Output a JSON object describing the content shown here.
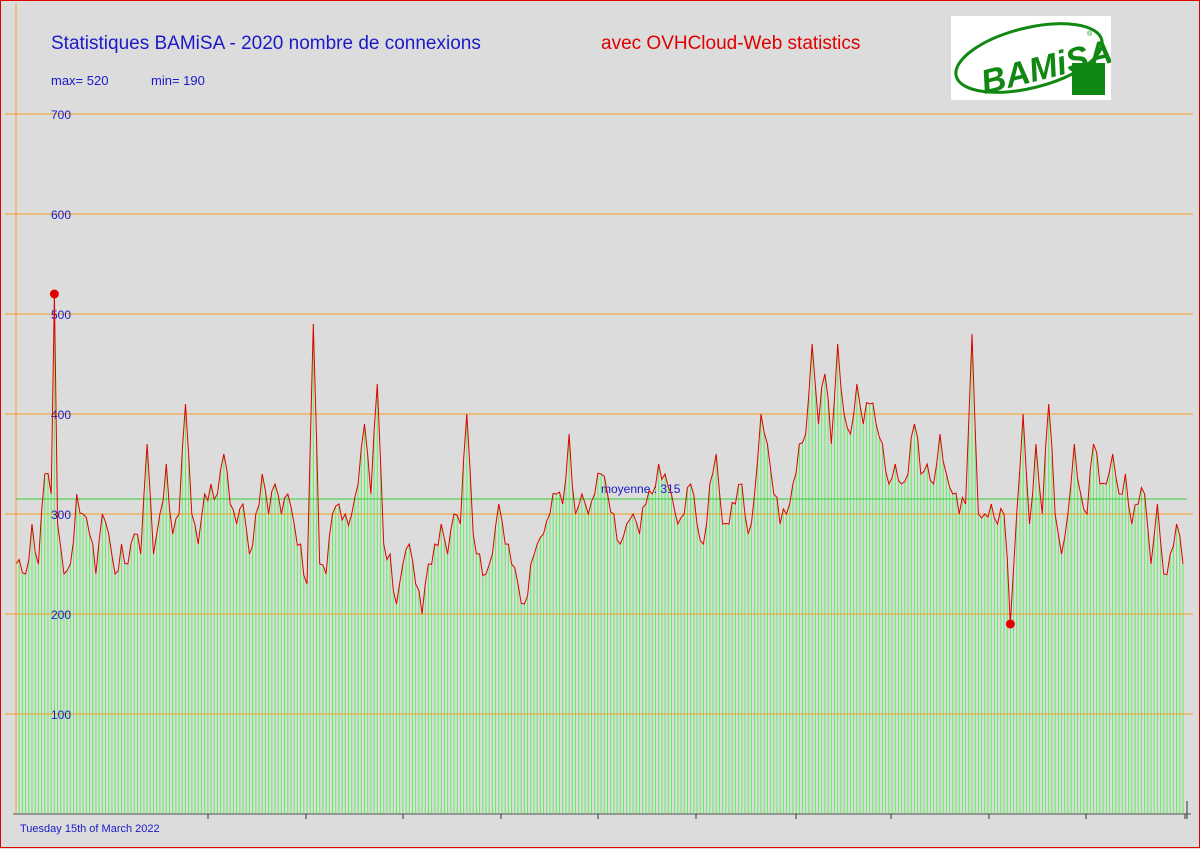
{
  "header": {
    "title": "Statistiques BAMiSA - 2020 nombre de connexions",
    "subtitle": "avec OVHCloud-Web statistics",
    "max_label": "max= 520",
    "min_label": "min= 190",
    "date_label": "Tuesday 15th of March 2022"
  },
  "logo": {
    "text": "BAMiSA",
    "registered": "®",
    "color": "#118811"
  },
  "colors": {
    "background": "#dcdcdc",
    "gridline": "#f0a020",
    "bar": "#5df05d",
    "line": "#e00000",
    "mean_line": "#30d030",
    "text_blue": "#1a1ac8",
    "text_red": "#e00000"
  },
  "chart_data": {
    "type": "bar",
    "x_count": 366,
    "ylim": [
      0,
      700
    ],
    "y_ticks": [
      "100",
      "200",
      "300",
      "400",
      "500",
      "600",
      "700"
    ],
    "grid": true,
    "mean": 315,
    "mean_label": "moyenne : 315",
    "max": 520,
    "min": 190,
    "max_index": 12,
    "min_index": 311,
    "anchors": [
      [
        0,
        250
      ],
      [
        3,
        240
      ],
      [
        5,
        290
      ],
      [
        7,
        250
      ],
      [
        9,
        340
      ],
      [
        11,
        320
      ],
      [
        12,
        520
      ],
      [
        13,
        290
      ],
      [
        15,
        240
      ],
      [
        17,
        250
      ],
      [
        19,
        320
      ],
      [
        21,
        300
      ],
      [
        23,
        280
      ],
      [
        25,
        240
      ],
      [
        27,
        300
      ],
      [
        29,
        280
      ],
      [
        31,
        240
      ],
      [
        33,
        270
      ],
      [
        35,
        250
      ],
      [
        37,
        280
      ],
      [
        39,
        260
      ],
      [
        41,
        370
      ],
      [
        43,
        260
      ],
      [
        45,
        300
      ],
      [
        47,
        350
      ],
      [
        49,
        280
      ],
      [
        51,
        300
      ],
      [
        53,
        410
      ],
      [
        55,
        300
      ],
      [
        57,
        270
      ],
      [
        59,
        320
      ],
      [
        61,
        330
      ],
      [
        63,
        320
      ],
      [
        65,
        360
      ],
      [
        67,
        310
      ],
      [
        69,
        290
      ],
      [
        71,
        310
      ],
      [
        73,
        260
      ],
      [
        75,
        300
      ],
      [
        77,
        340
      ],
      [
        79,
        300
      ],
      [
        81,
        330
      ],
      [
        83,
        300
      ],
      [
        85,
        320
      ],
      [
        87,
        290
      ],
      [
        89,
        270
      ],
      [
        91,
        230
      ],
      [
        93,
        490
      ],
      [
        95,
        250
      ],
      [
        97,
        240
      ],
      [
        99,
        300
      ],
      [
        101,
        310
      ],
      [
        103,
        300
      ],
      [
        105,
        300
      ],
      [
        107,
        330
      ],
      [
        109,
        390
      ],
      [
        111,
        320
      ],
      [
        113,
        430
      ],
      [
        115,
        270
      ],
      [
        117,
        260
      ],
      [
        119,
        210
      ],
      [
        121,
        250
      ],
      [
        123,
        270
      ],
      [
        125,
        230
      ],
      [
        127,
        200
      ],
      [
        129,
        250
      ],
      [
        131,
        270
      ],
      [
        133,
        290
      ],
      [
        135,
        260
      ],
      [
        137,
        300
      ],
      [
        139,
        290
      ],
      [
        141,
        400
      ],
      [
        143,
        280
      ],
      [
        145,
        260
      ],
      [
        147,
        240
      ],
      [
        149,
        260
      ],
      [
        151,
        310
      ],
      [
        153,
        270
      ],
      [
        155,
        250
      ],
      [
        157,
        230
      ],
      [
        159,
        210
      ],
      [
        161,
        250
      ],
      [
        163,
        270
      ],
      [
        165,
        280
      ],
      [
        167,
        300
      ],
      [
        169,
        320
      ],
      [
        171,
        310
      ],
      [
        173,
        380
      ],
      [
        175,
        300
      ],
      [
        177,
        320
      ],
      [
        179,
        300
      ],
      [
        181,
        320
      ],
      [
        183,
        340
      ],
      [
        185,
        320
      ],
      [
        187,
        300
      ],
      [
        189,
        270
      ],
      [
        191,
        290
      ],
      [
        193,
        300
      ],
      [
        195,
        280
      ],
      [
        197,
        310
      ],
      [
        199,
        320
      ],
      [
        201,
        350
      ],
      [
        203,
        340
      ],
      [
        205,
        320
      ],
      [
        207,
        290
      ],
      [
        209,
        300
      ],
      [
        211,
        330
      ],
      [
        213,
        290
      ],
      [
        215,
        270
      ],
      [
        217,
        330
      ],
      [
        219,
        360
      ],
      [
        221,
        290
      ],
      [
        223,
        290
      ],
      [
        225,
        310
      ],
      [
        227,
        330
      ],
      [
        229,
        280
      ],
      [
        231,
        320
      ],
      [
        233,
        400
      ],
      [
        235,
        370
      ],
      [
        237,
        320
      ],
      [
        239,
        290
      ],
      [
        241,
        300
      ],
      [
        243,
        330
      ],
      [
        245,
        370
      ],
      [
        247,
        380
      ],
      [
        249,
        470
      ],
      [
        251,
        390
      ],
      [
        253,
        440
      ],
      [
        255,
        370
      ],
      [
        257,
        470
      ],
      [
        259,
        400
      ],
      [
        261,
        380
      ],
      [
        263,
        430
      ],
      [
        265,
        390
      ],
      [
        267,
        410
      ],
      [
        269,
        390
      ],
      [
        271,
        370
      ],
      [
        273,
        330
      ],
      [
        275,
        350
      ],
      [
        277,
        330
      ],
      [
        279,
        340
      ],
      [
        281,
        390
      ],
      [
        283,
        340
      ],
      [
        285,
        350
      ],
      [
        287,
        330
      ],
      [
        289,
        380
      ],
      [
        291,
        340
      ],
      [
        293,
        320
      ],
      [
        295,
        300
      ],
      [
        297,
        310
      ],
      [
        299,
        480
      ],
      [
        301,
        300
      ],
      [
        303,
        300
      ],
      [
        305,
        310
      ],
      [
        307,
        290
      ],
      [
        309,
        300
      ],
      [
        311,
        190
      ],
      [
        313,
        300
      ],
      [
        315,
        400
      ],
      [
        317,
        290
      ],
      [
        319,
        370
      ],
      [
        321,
        300
      ],
      [
        323,
        410
      ],
      [
        325,
        300
      ],
      [
        327,
        260
      ],
      [
        329,
        300
      ],
      [
        331,
        370
      ],
      [
        333,
        320
      ],
      [
        335,
        300
      ],
      [
        337,
        370
      ],
      [
        339,
        330
      ],
      [
        341,
        330
      ],
      [
        343,
        360
      ],
      [
        345,
        320
      ],
      [
        347,
        340
      ],
      [
        349,
        290
      ],
      [
        351,
        310
      ],
      [
        353,
        320
      ],
      [
        355,
        250
      ],
      [
        357,
        310
      ],
      [
        359,
        240
      ],
      [
        361,
        260
      ],
      [
        363,
        290
      ],
      [
        365,
        250
      ]
    ]
  }
}
